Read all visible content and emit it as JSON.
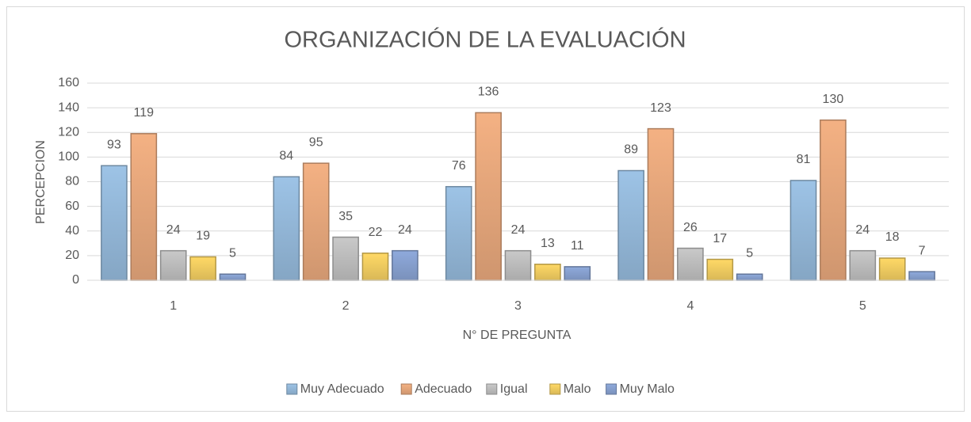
{
  "chart_data": {
    "type": "bar",
    "title": "ORGANIZACIÓN DE LA EVALUACIÓN",
    "x_label": "N° DE PREGUNTA",
    "y_label": "PERCEPCION",
    "categories": [
      "1",
      "2",
      "3",
      "4",
      "5"
    ],
    "series": [
      {
        "name": "Muy Adecuado",
        "color": "#9dc3e6",
        "values": [
          93,
          84,
          76,
          89,
          81
        ]
      },
      {
        "name": "Adecuado",
        "color": "#f4b183",
        "values": [
          119,
          95,
          136,
          123,
          130
        ]
      },
      {
        "name": "Igual",
        "color": "#c9c9c9",
        "values": [
          24,
          35,
          24,
          26,
          24
        ]
      },
      {
        "name": "Malo",
        "color": "#ffd966",
        "values": [
          19,
          22,
          13,
          17,
          18
        ]
      },
      {
        "name": "Muy Malo",
        "color": "#8faadc",
        "values": [
          5,
          24,
          11,
          5,
          7
        ]
      }
    ],
    "ylim": [
      0,
      160
    ],
    "yticks": [
      0,
      20,
      40,
      60,
      80,
      100,
      120,
      140,
      160
    ],
    "grid": true,
    "legend": "bottom"
  }
}
